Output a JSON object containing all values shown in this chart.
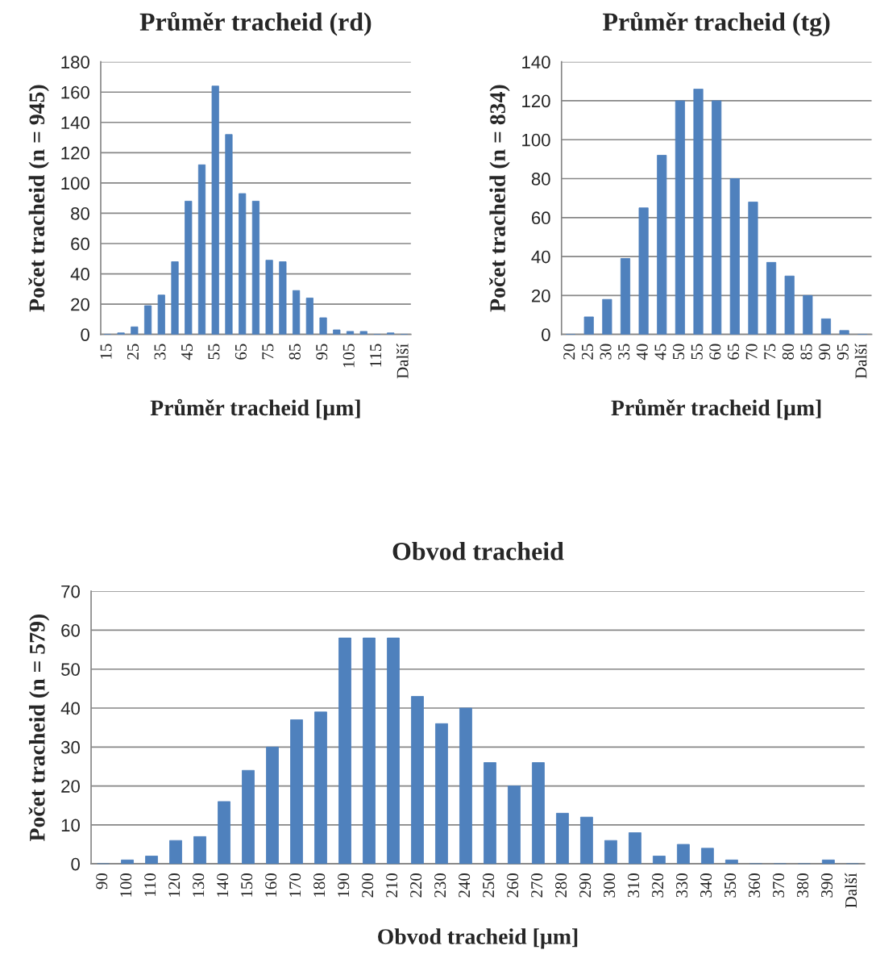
{
  "chart_data": [
    {
      "type": "bar",
      "title": "Průměr tracheid (rd)",
      "xlabel": "Průměr tracheid [µm]",
      "ylabel": "Počet tracheid (n = 945)",
      "categories": [
        "15",
        null,
        "25",
        null,
        "35",
        null,
        "45",
        null,
        "55",
        null,
        "65",
        null,
        "75",
        null,
        "85",
        null,
        "95",
        null,
        "105",
        null,
        "115",
        null,
        "Další"
      ],
      "values": [
        0,
        1,
        5,
        19,
        26,
        48,
        88,
        112,
        164,
        132,
        93,
        88,
        49,
        48,
        29,
        24,
        11,
        3,
        2,
        2,
        0,
        1,
        0
      ],
      "color": "#4f81bd",
      "ylim": [
        0,
        180
      ],
      "yticks": [
        0,
        20,
        40,
        60,
        80,
        100,
        120,
        140,
        160,
        180
      ],
      "grid": "y"
    },
    {
      "type": "bar",
      "title": "Průměr tracheid (tg)",
      "xlabel": "Průměr tracheid [µm]",
      "ylabel": "Počet tracheid (n = 834)",
      "categories": [
        "20",
        "25",
        "30",
        "35",
        "40",
        "45",
        "50",
        "55",
        "60",
        "65",
        "70",
        "75",
        "80",
        "85",
        "90",
        "95",
        "Další"
      ],
      "values": [
        0,
        9,
        18,
        39,
        65,
        92,
        120,
        126,
        120,
        80,
        68,
        37,
        30,
        20,
        8,
        2,
        0
      ],
      "color": "#4f81bd",
      "ylim": [
        0,
        140
      ],
      "yticks": [
        0,
        20,
        40,
        60,
        80,
        100,
        120,
        140
      ],
      "grid": "y"
    },
    {
      "type": "bar",
      "title": "Obvod tracheid",
      "xlabel": "Obvod tracheid [µm]",
      "ylabel": "Počet tracheid (n = 579)",
      "categories": [
        "90",
        "100",
        "110",
        "120",
        "130",
        "140",
        "150",
        "160",
        "170",
        "180",
        "190",
        "200",
        "210",
        "220",
        "230",
        "240",
        "250",
        "260",
        "270",
        "280",
        "290",
        "300",
        "310",
        "320",
        "330",
        "340",
        "350",
        "360",
        "370",
        "380",
        "390",
        "Další"
      ],
      "values": [
        0,
        1,
        2,
        6,
        7,
        16,
        24,
        30,
        37,
        39,
        58,
        58,
        58,
        43,
        36,
        40,
        26,
        20,
        26,
        13,
        12,
        6,
        8,
        2,
        5,
        4,
        1,
        0,
        0,
        0,
        1,
        0
      ],
      "color": "#4f81bd",
      "ylim": [
        0,
        70
      ],
      "yticks": [
        0,
        10,
        20,
        30,
        40,
        50,
        60,
        70
      ],
      "grid": "y"
    }
  ]
}
